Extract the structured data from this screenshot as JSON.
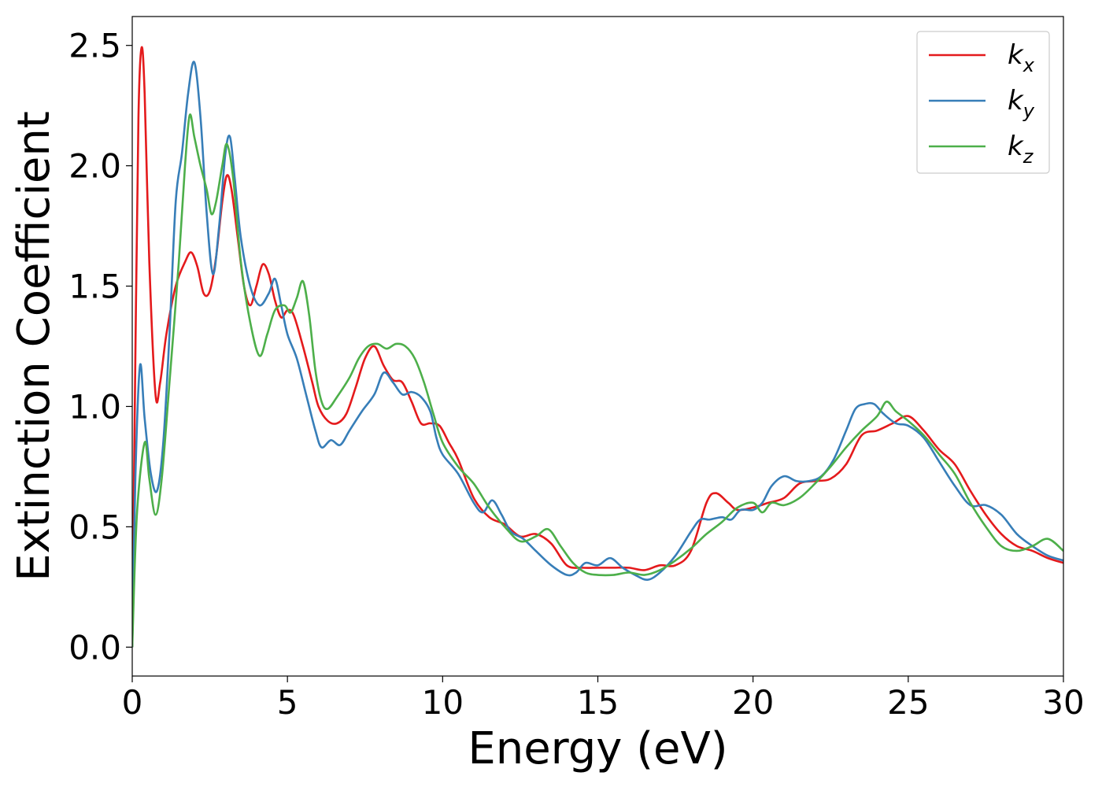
{
  "chart_data": {
    "type": "line",
    "xlabel": "Energy (eV)",
    "ylabel": "Extinction Coefficient",
    "xlim": [
      0,
      30
    ],
    "ylim": [
      -0.12,
      2.62
    ],
    "xticks": [
      0,
      5,
      10,
      15,
      20,
      25,
      30
    ],
    "xtick_labels": [
      "0",
      "5",
      "10",
      "15",
      "20",
      "25",
      "30"
    ],
    "yticks": [
      0.0,
      0.5,
      1.0,
      1.5,
      2.0,
      2.5
    ],
    "ytick_labels": [
      "0.0",
      "0.5",
      "1.0",
      "1.5",
      "2.0",
      "2.5"
    ],
    "grid": false,
    "legend_position": "top-right",
    "series": [
      {
        "name": "k_x",
        "label_base": "k",
        "label_sub": "x",
        "color": "#e41a1c",
        "points": [
          [
            0,
            0.0
          ],
          [
            0.1,
            1.2
          ],
          [
            0.2,
            2.2
          ],
          [
            0.3,
            2.49
          ],
          [
            0.4,
            2.3
          ],
          [
            0.55,
            1.6
          ],
          [
            0.75,
            1.05
          ],
          [
            0.9,
            1.1
          ],
          [
            1.1,
            1.3
          ],
          [
            1.4,
            1.5
          ],
          [
            1.7,
            1.6
          ],
          [
            1.9,
            1.64
          ],
          [
            2.1,
            1.58
          ],
          [
            2.3,
            1.47
          ],
          [
            2.5,
            1.48
          ],
          [
            2.7,
            1.62
          ],
          [
            2.9,
            1.85
          ],
          [
            3.05,
            1.96
          ],
          [
            3.2,
            1.9
          ],
          [
            3.4,
            1.7
          ],
          [
            3.6,
            1.5
          ],
          [
            3.8,
            1.42
          ],
          [
            4.0,
            1.5
          ],
          [
            4.2,
            1.59
          ],
          [
            4.4,
            1.55
          ],
          [
            4.6,
            1.44
          ],
          [
            4.8,
            1.37
          ],
          [
            5.0,
            1.4
          ],
          [
            5.2,
            1.38
          ],
          [
            5.5,
            1.25
          ],
          [
            5.8,
            1.1
          ],
          [
            6.0,
            1.0
          ],
          [
            6.3,
            0.94
          ],
          [
            6.6,
            0.93
          ],
          [
            6.9,
            0.97
          ],
          [
            7.2,
            1.08
          ],
          [
            7.5,
            1.2
          ],
          [
            7.8,
            1.25
          ],
          [
            8.1,
            1.17
          ],
          [
            8.4,
            1.11
          ],
          [
            8.7,
            1.1
          ],
          [
            9.0,
            1.02
          ],
          [
            9.3,
            0.93
          ],
          [
            9.6,
            0.93
          ],
          [
            9.9,
            0.92
          ],
          [
            10.2,
            0.85
          ],
          [
            10.5,
            0.78
          ],
          [
            11.0,
            0.62
          ],
          [
            11.5,
            0.54
          ],
          [
            12.0,
            0.51
          ],
          [
            12.5,
            0.46
          ],
          [
            13.0,
            0.47
          ],
          [
            13.5,
            0.43
          ],
          [
            14.0,
            0.34
          ],
          [
            14.5,
            0.33
          ],
          [
            15.0,
            0.33
          ],
          [
            15.5,
            0.33
          ],
          [
            16.0,
            0.33
          ],
          [
            16.5,
            0.32
          ],
          [
            17.0,
            0.34
          ],
          [
            17.5,
            0.34
          ],
          [
            18.0,
            0.4
          ],
          [
            18.5,
            0.6
          ],
          [
            18.8,
            0.64
          ],
          [
            19.2,
            0.6
          ],
          [
            19.5,
            0.57
          ],
          [
            20.0,
            0.58
          ],
          [
            20.5,
            0.6
          ],
          [
            21.0,
            0.62
          ],
          [
            21.5,
            0.68
          ],
          [
            22.0,
            0.69
          ],
          [
            22.5,
            0.7
          ],
          [
            23.0,
            0.76
          ],
          [
            23.5,
            0.88
          ],
          [
            24.0,
            0.9
          ],
          [
            24.5,
            0.93
          ],
          [
            25.0,
            0.96
          ],
          [
            25.5,
            0.9
          ],
          [
            26.0,
            0.82
          ],
          [
            26.5,
            0.76
          ],
          [
            27.0,
            0.65
          ],
          [
            27.5,
            0.55
          ],
          [
            28.0,
            0.47
          ],
          [
            28.5,
            0.42
          ],
          [
            29.0,
            0.4
          ],
          [
            29.5,
            0.37
          ],
          [
            30.0,
            0.35
          ]
        ]
      },
      {
        "name": "k_y",
        "label_base": "k",
        "label_sub": "y",
        "color": "#377eb8",
        "points": [
          [
            0,
            0.0
          ],
          [
            0.1,
            0.7
          ],
          [
            0.25,
            1.17
          ],
          [
            0.4,
            0.95
          ],
          [
            0.6,
            0.72
          ],
          [
            0.8,
            0.65
          ],
          [
            1.0,
            0.85
          ],
          [
            1.2,
            1.3
          ],
          [
            1.4,
            1.85
          ],
          [
            1.6,
            2.05
          ],
          [
            1.8,
            2.3
          ],
          [
            2.0,
            2.43
          ],
          [
            2.2,
            2.2
          ],
          [
            2.4,
            1.8
          ],
          [
            2.6,
            1.55
          ],
          [
            2.8,
            1.75
          ],
          [
            3.0,
            2.05
          ],
          [
            3.15,
            2.12
          ],
          [
            3.3,
            1.95
          ],
          [
            3.5,
            1.7
          ],
          [
            3.8,
            1.5
          ],
          [
            4.1,
            1.42
          ],
          [
            4.4,
            1.47
          ],
          [
            4.6,
            1.53
          ],
          [
            4.8,
            1.42
          ],
          [
            5.0,
            1.3
          ],
          [
            5.3,
            1.2
          ],
          [
            5.6,
            1.05
          ],
          [
            5.9,
            0.9
          ],
          [
            6.1,
            0.83
          ],
          [
            6.4,
            0.86
          ],
          [
            6.7,
            0.84
          ],
          [
            7.0,
            0.9
          ],
          [
            7.4,
            0.98
          ],
          [
            7.8,
            1.05
          ],
          [
            8.1,
            1.14
          ],
          [
            8.4,
            1.1
          ],
          [
            8.7,
            1.05
          ],
          [
            9.0,
            1.06
          ],
          [
            9.3,
            1.04
          ],
          [
            9.6,
            0.98
          ],
          [
            9.8,
            0.87
          ],
          [
            10.0,
            0.8
          ],
          [
            10.5,
            0.72
          ],
          [
            11.0,
            0.6
          ],
          [
            11.3,
            0.56
          ],
          [
            11.6,
            0.61
          ],
          [
            11.9,
            0.55
          ],
          [
            12.2,
            0.48
          ],
          [
            12.6,
            0.45
          ],
          [
            13.0,
            0.4
          ],
          [
            13.5,
            0.34
          ],
          [
            14.0,
            0.3
          ],
          [
            14.3,
            0.31
          ],
          [
            14.6,
            0.35
          ],
          [
            15.0,
            0.34
          ],
          [
            15.4,
            0.37
          ],
          [
            15.8,
            0.33
          ],
          [
            16.2,
            0.3
          ],
          [
            16.6,
            0.28
          ],
          [
            17.0,
            0.31
          ],
          [
            17.5,
            0.38
          ],
          [
            18.0,
            0.48
          ],
          [
            18.3,
            0.53
          ],
          [
            18.6,
            0.53
          ],
          [
            19.0,
            0.54
          ],
          [
            19.3,
            0.53
          ],
          [
            19.6,
            0.57
          ],
          [
            20.0,
            0.57
          ],
          [
            20.3,
            0.6
          ],
          [
            20.6,
            0.67
          ],
          [
            21.0,
            0.71
          ],
          [
            21.4,
            0.69
          ],
          [
            21.8,
            0.69
          ],
          [
            22.2,
            0.71
          ],
          [
            22.6,
            0.78
          ],
          [
            23.0,
            0.9
          ],
          [
            23.3,
            0.99
          ],
          [
            23.6,
            1.01
          ],
          [
            23.9,
            1.01
          ],
          [
            24.2,
            0.97
          ],
          [
            24.6,
            0.93
          ],
          [
            25.0,
            0.92
          ],
          [
            25.5,
            0.87
          ],
          [
            26.0,
            0.77
          ],
          [
            26.5,
            0.67
          ],
          [
            27.0,
            0.59
          ],
          [
            27.5,
            0.59
          ],
          [
            28.0,
            0.55
          ],
          [
            28.5,
            0.47
          ],
          [
            29.0,
            0.42
          ],
          [
            29.5,
            0.38
          ],
          [
            30.0,
            0.36
          ]
        ]
      },
      {
        "name": "k_z",
        "label_base": "k",
        "label_sub": "z",
        "color": "#4daf4a",
        "points": [
          [
            0,
            0.0
          ],
          [
            0.15,
            0.55
          ],
          [
            0.4,
            0.85
          ],
          [
            0.55,
            0.7
          ],
          [
            0.75,
            0.55
          ],
          [
            0.95,
            0.7
          ],
          [
            1.2,
            1.1
          ],
          [
            1.5,
            1.6
          ],
          [
            1.7,
            2.0
          ],
          [
            1.85,
            2.21
          ],
          [
            2.0,
            2.12
          ],
          [
            2.2,
            2.0
          ],
          [
            2.4,
            1.9
          ],
          [
            2.55,
            1.8
          ],
          [
            2.7,
            1.85
          ],
          [
            2.9,
            2.0
          ],
          [
            3.05,
            2.09
          ],
          [
            3.25,
            1.95
          ],
          [
            3.5,
            1.6
          ],
          [
            3.8,
            1.35
          ],
          [
            4.1,
            1.21
          ],
          [
            4.35,
            1.3
          ],
          [
            4.6,
            1.4
          ],
          [
            4.9,
            1.42
          ],
          [
            5.1,
            1.39
          ],
          [
            5.3,
            1.45
          ],
          [
            5.5,
            1.52
          ],
          [
            5.7,
            1.38
          ],
          [
            5.9,
            1.15
          ],
          [
            6.1,
            1.02
          ],
          [
            6.3,
            0.99
          ],
          [
            6.6,
            1.04
          ],
          [
            7.0,
            1.12
          ],
          [
            7.3,
            1.2
          ],
          [
            7.6,
            1.25
          ],
          [
            7.9,
            1.26
          ],
          [
            8.2,
            1.24
          ],
          [
            8.5,
            1.26
          ],
          [
            8.8,
            1.25
          ],
          [
            9.1,
            1.2
          ],
          [
            9.4,
            1.1
          ],
          [
            9.7,
            0.97
          ],
          [
            10.0,
            0.85
          ],
          [
            10.5,
            0.75
          ],
          [
            11.0,
            0.68
          ],
          [
            11.5,
            0.58
          ],
          [
            12.0,
            0.5
          ],
          [
            12.5,
            0.44
          ],
          [
            13.0,
            0.46
          ],
          [
            13.4,
            0.49
          ],
          [
            13.8,
            0.42
          ],
          [
            14.2,
            0.35
          ],
          [
            14.6,
            0.31
          ],
          [
            15.0,
            0.3
          ],
          [
            15.5,
            0.3
          ],
          [
            16.0,
            0.31
          ],
          [
            16.5,
            0.3
          ],
          [
            17.0,
            0.32
          ],
          [
            17.5,
            0.36
          ],
          [
            18.0,
            0.41
          ],
          [
            18.5,
            0.47
          ],
          [
            19.0,
            0.52
          ],
          [
            19.5,
            0.58
          ],
          [
            20.0,
            0.6
          ],
          [
            20.3,
            0.56
          ],
          [
            20.6,
            0.6
          ],
          [
            21.0,
            0.59
          ],
          [
            21.5,
            0.62
          ],
          [
            22.0,
            0.68
          ],
          [
            22.5,
            0.75
          ],
          [
            23.0,
            0.83
          ],
          [
            23.5,
            0.9
          ],
          [
            24.0,
            0.96
          ],
          [
            24.3,
            1.02
          ],
          [
            24.6,
            0.98
          ],
          [
            25.0,
            0.94
          ],
          [
            25.5,
            0.88
          ],
          [
            26.0,
            0.8
          ],
          [
            26.5,
            0.72
          ],
          [
            27.0,
            0.6
          ],
          [
            27.5,
            0.5
          ],
          [
            28.0,
            0.42
          ],
          [
            28.5,
            0.4
          ],
          [
            29.0,
            0.42
          ],
          [
            29.5,
            0.45
          ],
          [
            30.0,
            0.4
          ]
        ]
      }
    ]
  }
}
